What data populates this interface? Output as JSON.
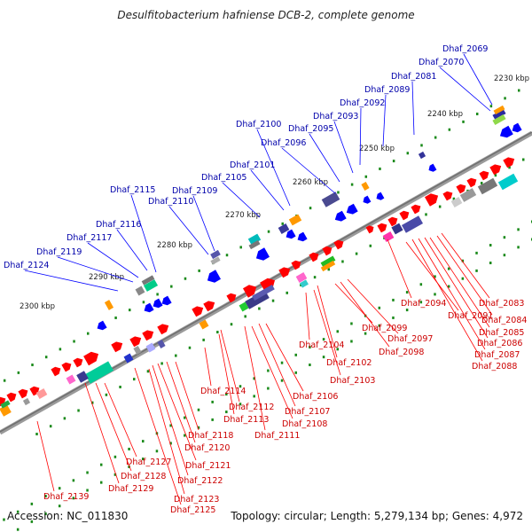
{
  "title": "Desulfitobacterium hafniense DCB-2, complete genome",
  "accession_label": "Accession: NC_011830",
  "summary_label": "Topology: circular; Length: 5,279,134 bp; Genes: 4,972",
  "colors": {
    "backbone": "#808080",
    "forward_strand": "#ff0000",
    "reverse_strand": "#0000ff",
    "label_forward": "#cc0000",
    "label_reverse": "#0000aa",
    "tick_dot": "#1a8a1a"
  },
  "scale_ticks": [
    "2230 kbp",
    "2240 kbp",
    "2250 kbp",
    "2260 kbp",
    "2270 kbp",
    "2280 kbp",
    "2290 kbp",
    "2300 kbp"
  ],
  "genes_upper": [
    "Dhaf_2069",
    "Dhaf_2070",
    "Dhaf_2081",
    "Dhaf_2089",
    "Dhaf_2092",
    "Dhaf_2093",
    "Dhaf_2095",
    "Dhaf_2096",
    "Dhaf_2100",
    "Dhaf_2101",
    "Dhaf_2105",
    "Dhaf_2109",
    "Dhaf_2110",
    "Dhaf_2115",
    "Dhaf_2116",
    "Dhaf_2117",
    "Dhaf_2119",
    "Dhaf_2124"
  ],
  "genes_lower": [
    "Dhaf_2083",
    "Dhaf_2084",
    "Dhaf_2085",
    "Dhaf_2086",
    "Dhaf_2087",
    "Dhaf_2088",
    "Dhaf_2091",
    "Dhaf_2094",
    "Dhaf_2097",
    "Dhaf_2098",
    "Dhaf_2099",
    "Dhaf_2102",
    "Dhaf_2103",
    "Dhaf_2104",
    "Dhaf_2106",
    "Dhaf_2107",
    "Dhaf_2108",
    "Dhaf_2111",
    "Dhaf_2112",
    "Dhaf_2113",
    "Dhaf_2114",
    "Dhaf_2118",
    "Dhaf_2120",
    "Dhaf_2121",
    "Dhaf_2122",
    "Dhaf_2123",
    "Dhaf_2125",
    "Dhaf_2127",
    "Dhaf_2128",
    "Dhaf_2129",
    "Dhaf_2139"
  ]
}
